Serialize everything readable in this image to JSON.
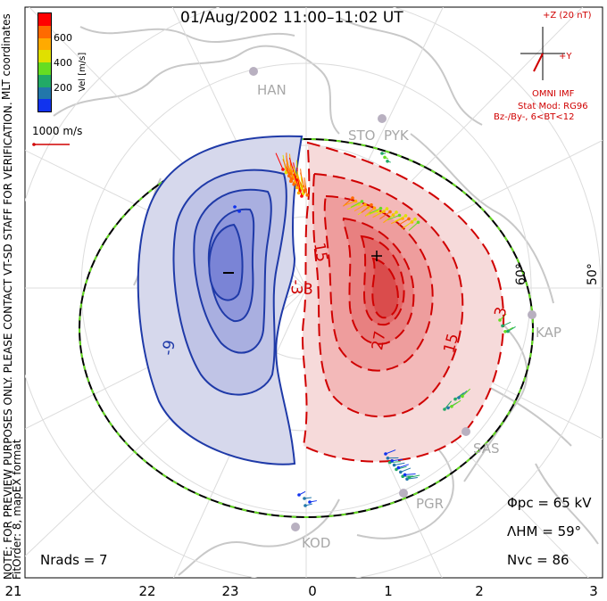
{
  "title": "01/Aug/2002 11:00–11:02 UT",
  "colorbar": {
    "label": "Vel [m/s]",
    "ticks": [
      "600",
      "400",
      "200"
    ],
    "colors": [
      "#ff0000",
      "#ff6a00",
      "#ffaa00",
      "#e0e000",
      "#66dd22",
      "#22aa66",
      "#2277aa",
      "#1133ee"
    ]
  },
  "coord_label": "MLT coordinates",
  "vector_scale": "1000 m/s",
  "imf": {
    "z_label": "+Z (20 nT)",
    "y_label": "+Y",
    "source": "OMNI IMF",
    "model": "Stat Mod: RG96",
    "condition": "Bz-/By-, 6<BT<12"
  },
  "stations": [
    "HAN",
    "STO",
    "PYK",
    "KAP",
    "SAS",
    "PGR",
    "KOD"
  ],
  "latitude_labels": [
    "60°",
    "50°"
  ],
  "contour_labels": [
    "-9",
    "-3",
    "3",
    "15",
    "27",
    "15",
    "3"
  ],
  "extrema": [
    "−",
    "+"
  ],
  "stats": {
    "phi_pc": "Φpc = 65 kV",
    "lambda_hm": "ΛHM = 59°",
    "n_vc": "Nvc = 86",
    "n_rads": "Nrads = 7"
  },
  "mlt_ticks": [
    "21",
    "22",
    "23",
    "0",
    "1",
    "2",
    "3"
  ],
  "notes": [
    "NOTE: FOR PREVIEW PURPOSES ONLY. PLEASE CONTACT VT-SD STAFF FOR VERIFICATION.",
    "FitOrder: 8, mapEX format"
  ]
}
